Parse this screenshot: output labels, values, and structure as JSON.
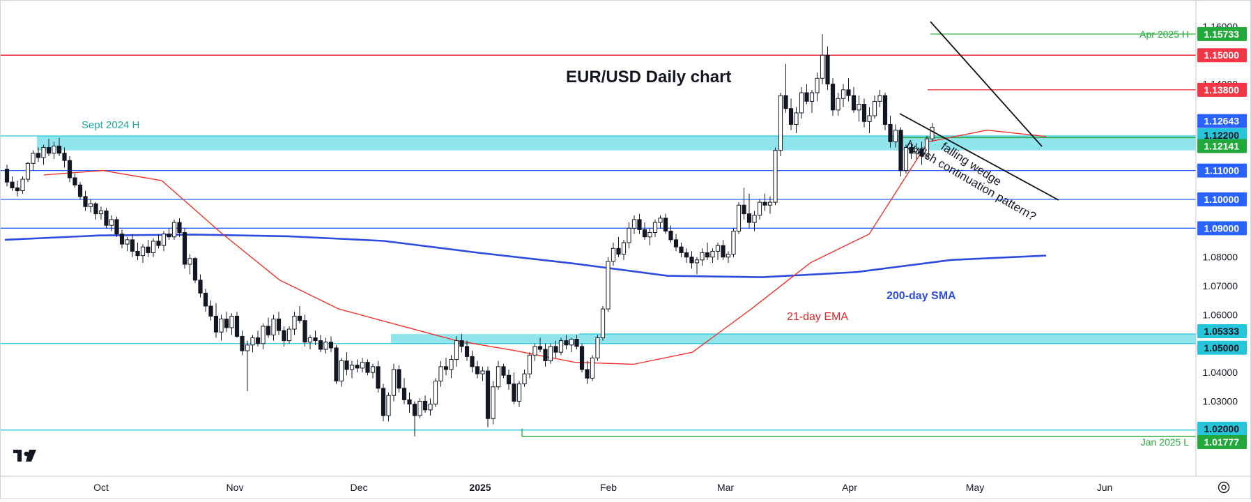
{
  "chart_data": {
    "type": "candlestick",
    "title": "EUR/USD Daily chart",
    "x_tick_labels": [
      "Oct",
      "Nov",
      "Dec",
      "2025",
      "Feb",
      "Mar",
      "Apr",
      "May",
      "Jun"
    ],
    "y_tick_labels": [
      "1.16000",
      "1.14000",
      "1.08000",
      "1.07000",
      "1.06000",
      "1.04000",
      "1.03000"
    ],
    "ylim": [
      1.0098,
      1.1648
    ],
    "grid": false,
    "price_levels": [
      {
        "value": 1.15733,
        "label": "1.15733",
        "color": "#22a83a",
        "note": "Apr 2025 H"
      },
      {
        "value": 1.15,
        "label": "1.15000",
        "color": "#f23645"
      },
      {
        "value": 1.138,
        "label": "1.13800",
        "color": "#f23645"
      },
      {
        "value": 1.12643,
        "label": "1.12643",
        "color": "#2962ff"
      },
      {
        "value": 1.122,
        "label": "1.12200",
        "color": "#26c6da"
      },
      {
        "value": 1.12141,
        "label": "1.12141",
        "color": "#22a83a"
      },
      {
        "value": 1.11,
        "label": "1.11000",
        "color": "#2962ff"
      },
      {
        "value": 1.1,
        "label": "1.10000",
        "color": "#2962ff"
      },
      {
        "value": 1.09,
        "label": "1.09000",
        "color": "#2962ff"
      },
      {
        "value": 1.05333,
        "label": "1.05333",
        "color": "#26c6da"
      },
      {
        "value": 1.05,
        "label": "1.05000",
        "color": "#26c6da"
      },
      {
        "value": 1.02,
        "label": "1.02000",
        "color": "#26c6da"
      },
      {
        "value": 1.01777,
        "label": "1.01777",
        "color": "#22a83a",
        "note": "Jan 2025 L"
      }
    ],
    "zones": [
      {
        "label": "Sept 2024 H",
        "top": 1.122,
        "bottom": 1.117
      },
      {
        "label": "",
        "top": 1.0533,
        "bottom": 1.05
      }
    ],
    "annotations": {
      "ema": "21-day EMA",
      "sma": "200-day SMA",
      "pattern_line1": "falling wedge",
      "pattern_line2": "bullish continuation pattern?"
    },
    "series": [
      {
        "name": "200-day SMA",
        "color": "#2e4be0",
        "values": [
          1.086,
          1.0875,
          1.0878,
          1.0872,
          1.0856,
          1.0815,
          1.0778,
          1.0735,
          1.073,
          1.0748,
          1.079,
          1.0805
        ]
      },
      {
        "name": "21-day EMA",
        "color": "#f0312a",
        "values": [
          1.1085,
          1.11,
          1.1065,
          1.0885,
          1.072,
          1.062,
          1.0565,
          1.051,
          1.0475,
          1.0435,
          1.0428,
          1.047,
          1.062,
          1.078,
          1.088,
          1.12,
          1.124,
          1.1218
        ]
      }
    ],
    "candles": [
      [
        1.1105,
        1.112,
        1.1045,
        1.106
      ],
      [
        1.106,
        1.108,
        1.103,
        1.104
      ],
      [
        1.104,
        1.1065,
        1.101,
        1.103
      ],
      [
        1.103,
        1.108,
        1.102,
        1.107
      ],
      [
        1.107,
        1.113,
        1.106,
        1.1125
      ],
      [
        1.1125,
        1.117,
        1.11,
        1.116
      ],
      [
        1.116,
        1.118,
        1.113,
        1.1145
      ],
      [
        1.1145,
        1.119,
        1.112,
        1.118
      ],
      [
        1.118,
        1.121,
        1.115,
        1.116
      ],
      [
        1.116,
        1.12,
        1.114,
        1.1185
      ],
      [
        1.1185,
        1.1214,
        1.115,
        1.116
      ],
      [
        1.116,
        1.118,
        1.111,
        1.1135
      ],
      [
        1.1135,
        1.115,
        1.106,
        1.1075
      ],
      [
        1.1075,
        1.109,
        1.104,
        1.105
      ],
      [
        1.105,
        1.106,
        1.1,
        1.101
      ],
      [
        1.101,
        1.103,
        1.096,
        1.0975
      ],
      [
        1.0975,
        1.1,
        1.0955,
        1.0985
      ],
      [
        1.0985,
        1.099,
        1.093,
        1.095
      ],
      [
        1.095,
        1.0975,
        1.093,
        1.096
      ],
      [
        1.096,
        1.097,
        1.09,
        1.091
      ],
      [
        1.091,
        1.0945,
        1.089,
        1.093
      ],
      [
        1.093,
        1.094,
        1.087,
        1.088
      ],
      [
        1.088,
        1.0895,
        1.083,
        1.0845
      ],
      [
        1.0845,
        1.087,
        1.082,
        1.086
      ],
      [
        1.086,
        1.088,
        1.08,
        1.082
      ],
      [
        1.082,
        1.085,
        1.079,
        1.0805
      ],
      [
        1.0805,
        1.0845,
        1.078,
        1.0835
      ],
      [
        1.0835,
        1.086,
        1.08,
        1.0815
      ],
      [
        1.0815,
        1.0865,
        1.08,
        1.0855
      ],
      [
        1.0855,
        1.088,
        1.083,
        1.084
      ],
      [
        1.084,
        1.089,
        1.082,
        1.088
      ],
      [
        1.088,
        1.09,
        1.086,
        1.087
      ],
      [
        1.087,
        1.093,
        1.086,
        1.092
      ],
      [
        1.092,
        1.0935,
        1.087,
        1.0885
      ],
      [
        1.0885,
        1.09,
        1.076,
        1.0775
      ],
      [
        1.0775,
        1.081,
        1.074,
        1.0795
      ],
      [
        1.0795,
        1.08,
        1.071,
        1.072
      ],
      [
        1.072,
        1.074,
        1.066,
        1.0675
      ],
      [
        1.0675,
        1.069,
        1.061,
        1.063
      ],
      [
        1.063,
        1.065,
        1.058,
        1.0595
      ],
      [
        1.0595,
        1.064,
        1.052,
        1.054
      ],
      [
        1.054,
        1.06,
        1.051,
        1.0585
      ],
      [
        1.0585,
        1.061,
        1.054,
        1.0555
      ],
      [
        1.0555,
        1.0605,
        1.053,
        1.0595
      ],
      [
        1.0595,
        1.061,
        1.052,
        1.0525
      ],
      [
        1.0525,
        1.0545,
        1.046,
        1.0475
      ],
      [
        1.0475,
        1.051,
        1.0335,
        1.0495
      ],
      [
        1.0495,
        1.053,
        1.047,
        1.052
      ],
      [
        1.052,
        1.0545,
        1.049,
        1.05
      ],
      [
        1.05,
        1.057,
        1.048,
        1.056
      ],
      [
        1.056,
        1.059,
        1.052,
        1.053
      ],
      [
        1.053,
        1.06,
        1.051,
        1.0585
      ],
      [
        1.0585,
        1.061,
        1.053,
        1.0545
      ],
      [
        1.0545,
        1.056,
        1.049,
        1.051
      ],
      [
        1.051,
        1.056,
        1.05,
        1.055
      ],
      [
        1.055,
        1.061,
        1.053,
        1.0595
      ],
      [
        1.0595,
        1.063,
        1.057,
        1.058
      ],
      [
        1.058,
        1.06,
        1.049,
        1.0505
      ],
      [
        1.0505,
        1.053,
        1.048,
        1.052
      ],
      [
        1.052,
        1.0545,
        1.0495,
        1.051
      ],
      [
        1.051,
        1.053,
        1.047,
        1.048
      ],
      [
        1.048,
        1.052,
        1.0465,
        1.0505
      ],
      [
        1.0505,
        1.0525,
        1.047,
        1.0485
      ],
      [
        1.0485,
        1.0495,
        1.036,
        1.037
      ],
      [
        1.037,
        1.045,
        1.035,
        1.044
      ],
      [
        1.044,
        1.047,
        1.039,
        1.041
      ],
      [
        1.041,
        1.044,
        1.038,
        1.0425
      ],
      [
        1.0425,
        1.0445,
        1.04,
        1.0415
      ],
      [
        1.0415,
        1.045,
        1.04,
        1.0435
      ],
      [
        1.0435,
        1.0445,
        1.039,
        1.04
      ],
      [
        1.04,
        1.043,
        1.038,
        1.042
      ],
      [
        1.042,
        1.044,
        1.033,
        1.0345
      ],
      [
        1.0345,
        1.036,
        1.023,
        1.025
      ],
      [
        1.025,
        1.033,
        1.023,
        1.032
      ],
      [
        1.032,
        1.043,
        1.03,
        1.041
      ],
      [
        1.041,
        1.0425,
        1.033,
        1.0345
      ],
      [
        1.0345,
        1.038,
        1.029,
        1.0305
      ],
      [
        1.0305,
        1.033,
        1.026,
        1.029
      ],
      [
        1.029,
        1.03,
        1.0178,
        1.025
      ],
      [
        1.025,
        1.031,
        1.024,
        1.03
      ],
      [
        1.03,
        1.032,
        1.026,
        1.027
      ],
      [
        1.027,
        1.031,
        1.025,
        1.029
      ],
      [
        1.029,
        1.038,
        1.028,
        1.037
      ],
      [
        1.037,
        1.044,
        1.035,
        1.042
      ],
      [
        1.042,
        1.045,
        1.039,
        1.041
      ],
      [
        1.041,
        1.046,
        1.038,
        1.0445
      ],
      [
        1.0445,
        1.0525,
        1.042,
        1.051
      ],
      [
        1.051,
        1.0533,
        1.047,
        1.049
      ],
      [
        1.049,
        1.051,
        1.044,
        1.0455
      ],
      [
        1.0455,
        1.0475,
        1.04,
        1.042
      ],
      [
        1.042,
        1.044,
        1.038,
        1.0395
      ],
      [
        1.0395,
        1.042,
        1.037,
        1.0405
      ],
      [
        1.0405,
        1.042,
        1.021,
        1.024
      ],
      [
        1.024,
        1.037,
        1.022,
        1.035
      ],
      [
        1.035,
        1.044,
        1.034,
        1.042
      ],
      [
        1.042,
        1.043,
        1.038,
        1.039
      ],
      [
        1.039,
        1.041,
        1.034,
        1.036
      ],
      [
        1.036,
        1.04,
        1.029,
        1.03
      ],
      [
        1.03,
        1.037,
        1.028,
        1.036
      ],
      [
        1.036,
        1.041,
        1.035,
        1.0395
      ],
      [
        1.0395,
        1.047,
        1.038,
        1.046
      ],
      [
        1.046,
        1.05,
        1.044,
        1.049
      ],
      [
        1.049,
        1.052,
        1.047,
        1.048
      ],
      [
        1.048,
        1.05,
        1.042,
        1.044
      ],
      [
        1.044,
        1.05,
        1.043,
        1.049
      ],
      [
        1.049,
        1.051,
        1.045,
        1.047
      ],
      [
        1.047,
        1.052,
        1.046,
        1.051
      ],
      [
        1.051,
        1.053,
        1.048,
        1.0495
      ],
      [
        1.0495,
        1.052,
        1.047,
        1.0515
      ],
      [
        1.0515,
        1.053,
        1.048,
        1.049
      ],
      [
        1.049,
        1.05,
        1.04,
        1.041
      ],
      [
        1.041,
        1.044,
        1.036,
        1.038
      ],
      [
        1.038,
        1.046,
        1.037,
        1.045
      ],
      [
        1.045,
        1.053,
        1.044,
        1.052
      ],
      [
        1.052,
        1.063,
        1.051,
        1.062
      ],
      [
        1.062,
        1.08,
        1.061,
        1.0785
      ],
      [
        1.0785,
        1.085,
        1.077,
        1.083
      ],
      [
        1.083,
        1.087,
        1.08,
        1.081
      ],
      [
        1.081,
        1.086,
        1.079,
        1.085
      ],
      [
        1.085,
        1.092,
        1.083,
        1.09
      ],
      [
        1.09,
        1.0945,
        1.088,
        1.093
      ],
      [
        1.093,
        1.095,
        1.088,
        1.0895
      ],
      [
        1.0895,
        1.092,
        1.086,
        1.087
      ],
      [
        1.087,
        1.09,
        1.084,
        1.0885
      ],
      [
        1.0885,
        1.093,
        1.087,
        1.092
      ],
      [
        1.092,
        1.0945,
        1.09,
        1.0935
      ],
      [
        1.0935,
        1.095,
        1.088,
        1.089
      ],
      [
        1.089,
        1.091,
        1.085,
        1.086
      ],
      [
        1.086,
        1.088,
        1.082,
        1.0835
      ],
      [
        1.0835,
        1.085,
        1.08,
        1.0815
      ],
      [
        1.0815,
        1.083,
        1.078,
        1.08
      ],
      [
        1.08,
        1.082,
        1.076,
        1.078
      ],
      [
        1.078,
        1.08,
        1.074,
        1.079
      ],
      [
        1.079,
        1.083,
        1.077,
        1.0815
      ],
      [
        1.0815,
        1.085,
        1.079,
        1.08
      ],
      [
        1.08,
        1.083,
        1.078,
        1.082
      ],
      [
        1.082,
        1.085,
        1.079,
        1.084
      ],
      [
        1.084,
        1.086,
        1.079,
        1.08
      ],
      [
        1.08,
        1.082,
        1.078,
        1.081
      ],
      [
        1.081,
        1.09,
        1.08,
        1.089
      ],
      [
        1.089,
        1.099,
        1.088,
        1.098
      ],
      [
        1.098,
        1.104,
        1.093,
        1.095
      ],
      [
        1.095,
        1.102,
        1.09,
        1.092
      ],
      [
        1.092,
        1.096,
        1.089,
        1.0945
      ],
      [
        1.0945,
        1.1,
        1.093,
        1.099
      ],
      [
        1.099,
        1.102,
        1.096,
        1.098
      ],
      [
        1.098,
        1.101,
        1.095,
        1.099
      ],
      [
        1.099,
        1.118,
        1.098,
        1.117
      ],
      [
        1.117,
        1.137,
        1.115,
        1.136
      ],
      [
        1.136,
        1.147,
        1.13,
        1.1315
      ],
      [
        1.1315,
        1.135,
        1.124,
        1.126
      ],
      [
        1.126,
        1.132,
        1.123,
        1.13
      ],
      [
        1.13,
        1.139,
        1.128,
        1.137
      ],
      [
        1.137,
        1.14,
        1.133,
        1.134
      ],
      [
        1.134,
        1.138,
        1.13,
        1.137
      ],
      [
        1.137,
        1.144,
        1.134,
        1.142
      ],
      [
        1.142,
        1.1573,
        1.14,
        1.15
      ],
      [
        1.15,
        1.153,
        1.138,
        1.14
      ],
      [
        1.14,
        1.142,
        1.129,
        1.131
      ],
      [
        1.131,
        1.137,
        1.129,
        1.135
      ],
      [
        1.135,
        1.14,
        1.132,
        1.138
      ],
      [
        1.138,
        1.142,
        1.134,
        1.136
      ],
      [
        1.136,
        1.139,
        1.13,
        1.131
      ],
      [
        1.131,
        1.136,
        1.127,
        1.133
      ],
      [
        1.133,
        1.135,
        1.125,
        1.127
      ],
      [
        1.127,
        1.132,
        1.123,
        1.129
      ],
      [
        1.129,
        1.136,
        1.128,
        1.134
      ],
      [
        1.134,
        1.138,
        1.132,
        1.136
      ],
      [
        1.136,
        1.137,
        1.124,
        1.126
      ],
      [
        1.126,
        1.129,
        1.118,
        1.12
      ],
      [
        1.12,
        1.126,
        1.118,
        1.124
      ],
      [
        1.124,
        1.125,
        1.108,
        1.11
      ],
      [
        1.11,
        1.119,
        1.109,
        1.118
      ],
      [
        1.118,
        1.12,
        1.114,
        1.116
      ],
      [
        1.116,
        1.1195,
        1.114,
        1.1175
      ],
      [
        1.1175,
        1.12,
        1.112,
        1.115
      ],
      [
        1.115,
        1.122,
        1.114,
        1.121
      ],
      [
        1.121,
        1.1265,
        1.12,
        1.125
      ]
    ]
  },
  "axis": {
    "settings_icon": "gear-icon",
    "logo_text": "TV"
  }
}
